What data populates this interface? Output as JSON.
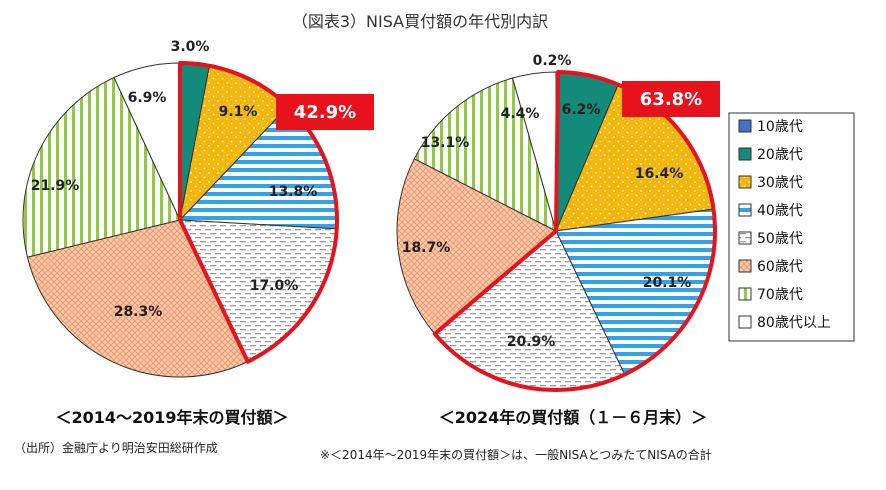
{
  "figure": {
    "title": "（図表3）NISA買付額の年代別内訳",
    "source_note": "（出所）金融庁より明治安田総研作成",
    "footnote": "※＜2014年～2019年末の買付額＞は、一般NISAとつみたてNISAの合計"
  },
  "chart_data": [
    {
      "type": "pie",
      "title": "＜2014～2019年末の買付額＞",
      "categories": [
        "10歳代",
        "20歳代",
        "30歳代",
        "40歳代",
        "50歳代",
        "60歳代",
        "70歳代",
        "80歳代以上"
      ],
      "values": [
        0.0,
        3.0,
        9.1,
        13.8,
        17.0,
        28.3,
        21.9,
        6.9
      ],
      "labels": [
        "",
        "3.0%",
        "9.1%",
        "13.8%",
        "17.0%",
        "28.3%",
        "21.9%",
        "6.9%"
      ],
      "highlight_label": "42.9%",
      "highlight_categories": [
        "20歳代",
        "30歳代",
        "40歳代",
        "50歳代"
      ]
    },
    {
      "type": "pie",
      "title": "＜2024年の買付額（１－６月末）＞",
      "categories": [
        "10歳代",
        "20歳代",
        "30歳代",
        "40歳代",
        "50歳代",
        "60歳代",
        "70歳代",
        "80歳代以上"
      ],
      "values": [
        0.2,
        6.2,
        16.4,
        20.1,
        20.9,
        18.7,
        13.1,
        4.4
      ],
      "labels": [
        "0.2%",
        "6.2%",
        "16.4%",
        "20.1%",
        "20.9%",
        "18.7%",
        "13.1%",
        "4.4%"
      ],
      "highlight_label": "63.8%",
      "highlight_categories": [
        "20歳代",
        "30歳代",
        "40歳代",
        "50歳代"
      ]
    }
  ],
  "legend": {
    "placement": "right",
    "items": [
      "10歳代",
      "20歳代",
      "30歳代",
      "40歳代",
      "50歳代",
      "60歳代",
      "70歳代",
      "80歳代以上"
    ]
  },
  "colors": {
    "10歳代": "#4472c4",
    "20歳代": "#138a7a",
    "30歳代": "#f2b70f",
    "40歳代": "#3aa0e6",
    "50歳代": "#9a9a9a",
    "60歳代": "#f2a77c",
    "70歳代": "#92c84a",
    "80歳代以上": "#ffffff",
    "highlight": "#e8121c"
  }
}
